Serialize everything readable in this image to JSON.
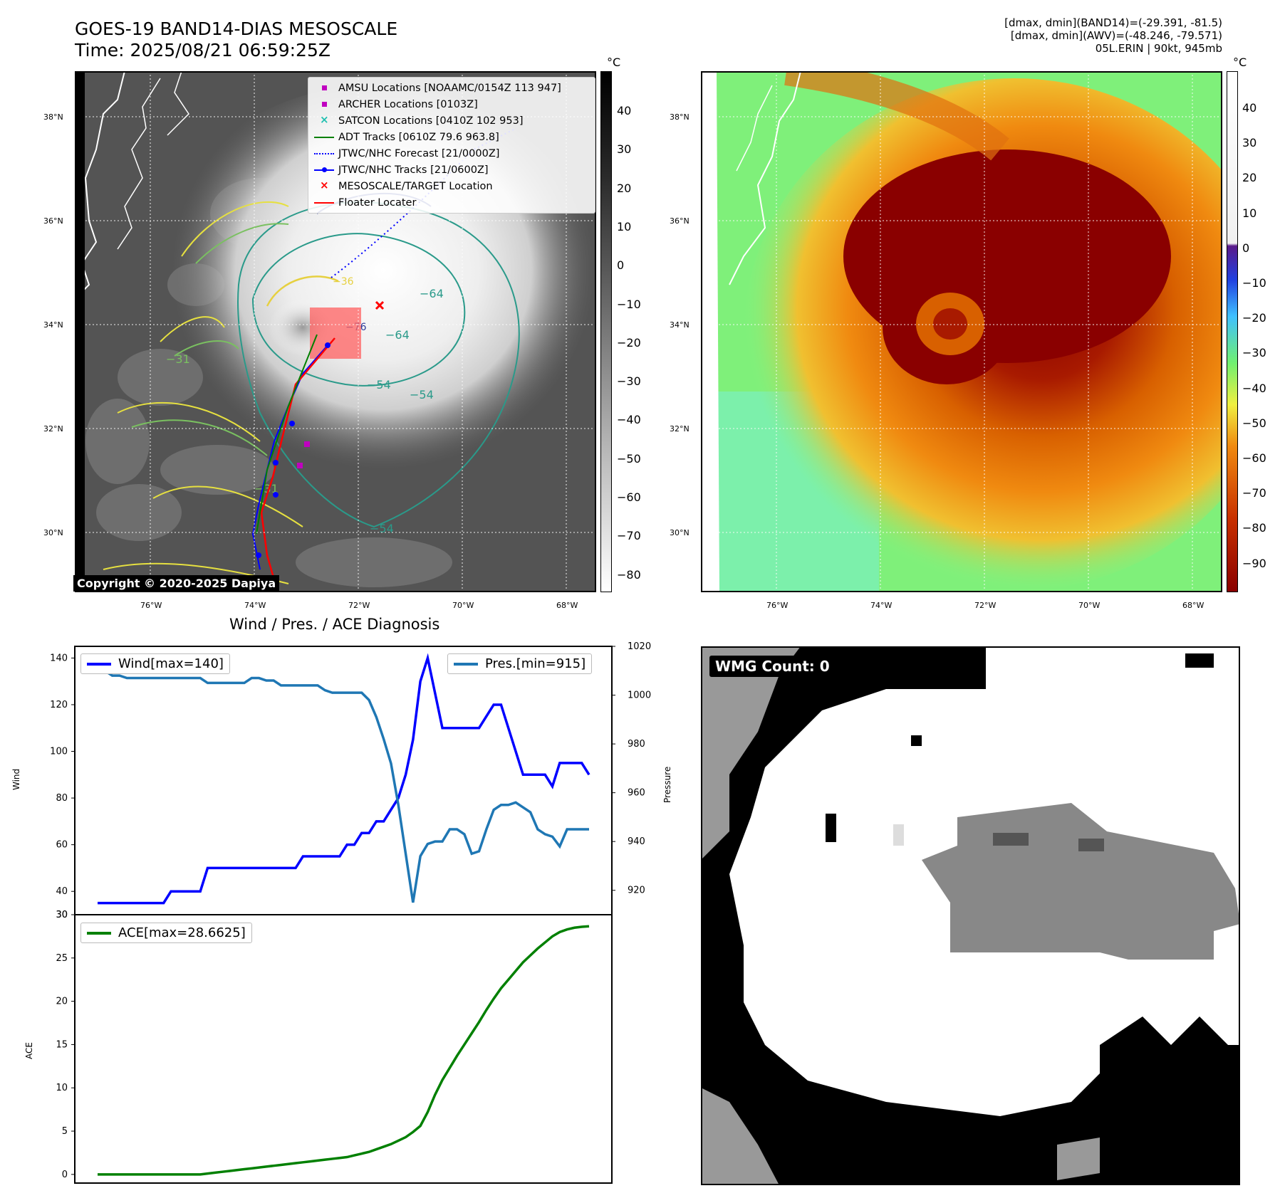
{
  "header": {
    "title_line1": "GOES-19 BAND14-DIAS MESOSCALE",
    "title_line2": "Time: 2025/08/21 06:59:25Z",
    "info_line1": "[dmax, dmin](BAND14)=(-29.391, -81.5)",
    "info_line2": "[dmax, dmin](AWV)=(-48.246, -79.571)",
    "info_line3": "05L.ERIN | 90kt, 945mb"
  },
  "map_axes": {
    "lon_labels": [
      "76°W",
      "74°W",
      "72°W",
      "70°W",
      "68°W"
    ],
    "lat_labels": [
      "38°N",
      "36°N",
      "34°N",
      "32°N",
      "30°N"
    ]
  },
  "ir_panel": {
    "colorbar_unit": "°C",
    "colorbar_ticks": [
      "40",
      "30",
      "20",
      "10",
      "0",
      "−10",
      "−20",
      "−30",
      "−40",
      "−50",
      "−60",
      "−70",
      "−80"
    ],
    "copyright": "Copyright © 2020-2025 Dapiya",
    "contour_labels": [
      "−64",
      "−64",
      "−54",
      "−54",
      "−54",
      "−31",
      "−31",
      "−76",
      "−36"
    ],
    "legend": [
      {
        "label": "AMSU Locations [NOAAMC/0154Z 113 947]",
        "color": "#c000c0",
        "marker": "square"
      },
      {
        "label": "ARCHER Locations [0103Z]",
        "color": "#c000c0",
        "marker": "square"
      },
      {
        "label": "SATCON Locations [0410Z 102 953]",
        "color": "#20c0b0",
        "marker": "x"
      },
      {
        "label": "ADT Tracks [0610Z 79.6 963.8]",
        "color": "#008000",
        "marker": "line"
      },
      {
        "label": "JTWC/NHC Forecast [21/0000Z]",
        "color": "#0000ff",
        "marker": "dotted"
      },
      {
        "label": "JTWC/NHC Tracks [21/0600Z]",
        "color": "#0000ff",
        "marker": "line-dot"
      },
      {
        "label": "MESOSCALE/TARGET Location",
        "color": "#ff0000",
        "marker": "x"
      },
      {
        "label": "Floater Locater",
        "color": "#ff0000",
        "marker": "line"
      }
    ]
  },
  "wv_panel": {
    "colorbar_unit": "°C",
    "colorbar_ticks": [
      "40",
      "30",
      "20",
      "10",
      "0",
      "−10",
      "−20",
      "−30",
      "−40",
      "−50",
      "−60",
      "−70",
      "−80",
      "−90"
    ]
  },
  "diagnosis": {
    "title": "Wind / Pres. / ACE Diagnosis",
    "wind_label": "Wind",
    "pressure_label": "Pressure",
    "ace_label": "ACE",
    "wind_legend": "Wind[max=140]",
    "pres_legend": "Pres.[min=915]",
    "ace_legend": "ACE[max=28.6625]"
  },
  "wmg_panel": {
    "badge": "WMG Count: 0"
  },
  "colors": {
    "wind": "#0000ff",
    "pressure": "#1f77b4",
    "ace": "#008000",
    "red": "#ff0000"
  },
  "chart_data": [
    {
      "type": "line",
      "title": "Wind / Pres. / ACE Diagnosis",
      "ylabel": "Wind",
      "ylim": [
        30,
        145
      ],
      "yticks": [
        30,
        40,
        60,
        80,
        100,
        120,
        140
      ],
      "series": [
        {
          "name": "Wind[max=140]",
          "values": [
            35,
            35,
            35,
            35,
            35,
            35,
            35,
            35,
            35,
            35,
            40,
            40,
            40,
            40,
            40,
            50,
            50,
            50,
            50,
            50,
            50,
            50,
            50,
            50,
            50,
            50,
            50,
            50,
            55,
            55,
            55,
            55,
            55,
            55,
            60,
            60,
            65,
            65,
            70,
            70,
            75,
            80,
            90,
            105,
            130,
            140,
            125,
            110,
            110,
            110,
            110,
            110,
            110,
            115,
            120,
            120,
            110,
            100,
            90,
            90,
            90,
            90,
            85,
            95,
            95,
            95,
            95,
            90
          ]
        }
      ],
      "secondary_axis": {
        "ylabel": "Pressure",
        "ylim": [
          910,
          1020
        ],
        "yticks": [
          920,
          940,
          960,
          980,
          1000,
          1020
        ],
        "series": [
          {
            "name": "Pres.[min=915]",
            "values": [
              1010,
              1010,
              1008,
              1008,
              1007,
              1007,
              1007,
              1007,
              1007,
              1007,
              1007,
              1007,
              1007,
              1007,
              1007,
              1005,
              1005,
              1005,
              1005,
              1005,
              1005,
              1007,
              1007,
              1006,
              1006,
              1004,
              1004,
              1004,
              1004,
              1004,
              1004,
              1002,
              1001,
              1001,
              1001,
              1001,
              1001,
              998,
              991,
              982,
              972,
              955,
              935,
              915,
              934,
              939,
              940,
              940,
              945,
              945,
              943,
              935,
              936,
              945,
              953,
              955,
              955,
              956,
              954,
              952,
              945,
              943,
              942,
              938,
              945,
              945,
              945,
              945
            ]
          }
        ]
      }
    },
    {
      "type": "line",
      "ylabel": "ACE",
      "ylim": [
        -1,
        30
      ],
      "yticks": [
        0,
        5,
        10,
        15,
        20,
        25,
        30
      ],
      "series": [
        {
          "name": "ACE[max=28.6625]",
          "values": [
            0,
            0,
            0,
            0,
            0,
            0,
            0,
            0,
            0,
            0,
            0,
            0,
            0,
            0,
            0,
            0.1,
            0.2,
            0.3,
            0.4,
            0.5,
            0.6,
            0.7,
            0.8,
            0.9,
            1.0,
            1.1,
            1.2,
            1.3,
            1.4,
            1.5,
            1.6,
            1.7,
            1.8,
            1.9,
            2.0,
            2.2,
            2.4,
            2.6,
            2.9,
            3.2,
            3.5,
            3.9,
            4.3,
            4.9,
            5.6,
            7.2,
            9.2,
            10.9,
            12.3,
            13.7,
            15.0,
            16.3,
            17.6,
            19.0,
            20.3,
            21.5,
            22.5,
            23.5,
            24.5,
            25.3,
            26.1,
            26.8,
            27.5,
            28.0,
            28.3,
            28.5,
            28.6,
            28.6625
          ]
        }
      ]
    }
  ]
}
